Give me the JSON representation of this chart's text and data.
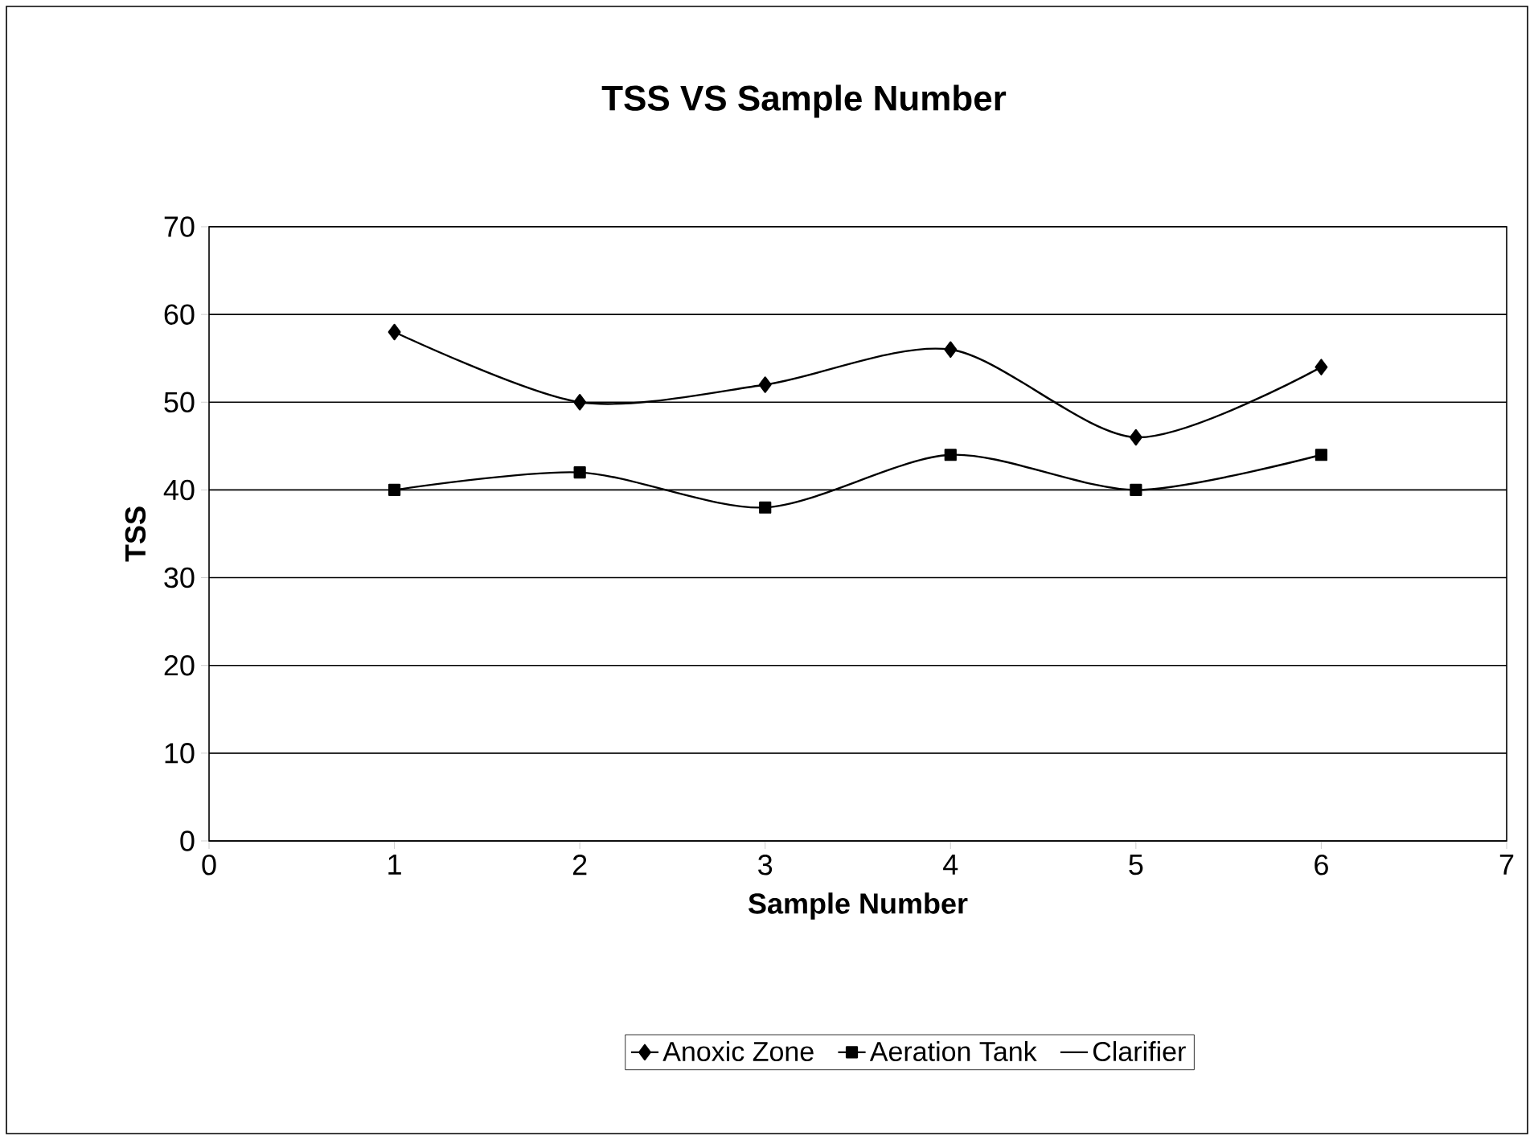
{
  "chart_data": {
    "type": "line",
    "title": "TSS VS Sample Number",
    "xlabel": "Sample Number",
    "ylabel": "TSS",
    "x": [
      1,
      2,
      3,
      4,
      5,
      6
    ],
    "series": [
      {
        "name": "Anoxic Zone",
        "color": "#000000",
        "marker": "diamond",
        "values": [
          58,
          50,
          52,
          56,
          46,
          54
        ]
      },
      {
        "name": "Aeration Tank",
        "color": "#000000",
        "marker": "square",
        "values": [
          40,
          42,
          38,
          44,
          40,
          44
        ]
      },
      {
        "name": "Clarifier",
        "marker": "none",
        "values": [
          null,
          null,
          null,
          null,
          null,
          null
        ]
      }
    ],
    "xlim": [
      0,
      7
    ],
    "xticks": [
      0,
      1,
      2,
      3,
      4,
      5,
      6,
      7
    ],
    "ylim": [
      0,
      70
    ],
    "yticks": [
      0,
      10,
      20,
      30,
      40,
      50,
      60,
      70
    ],
    "grid": "y",
    "legend": "bottom"
  }
}
